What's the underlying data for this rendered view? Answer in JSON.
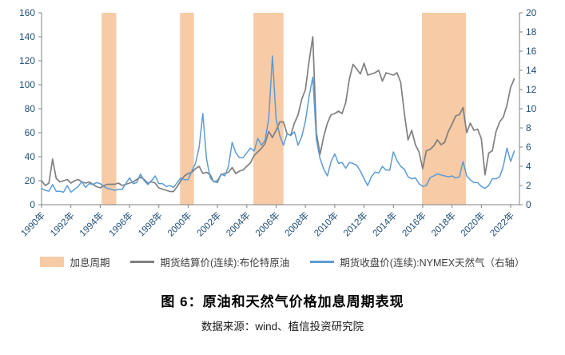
{
  "figure": {
    "title": "图 6：原油和天然气价格加息周期表现",
    "source": "数据来源：wind、植信投资研究院"
  },
  "legend": [
    {
      "label": "加息周期",
      "type": "band",
      "color": "#F6CBA6"
    },
    {
      "label": "期货结算价(连续):布伦特原油",
      "type": "line",
      "color": "#7F7F7F"
    },
    {
      "label": "期货收盘价(连续):NYMEX天然气（右轴）",
      "type": "line",
      "color": "#5B9BD5"
    }
  ],
  "chart_data": {
    "type": "line",
    "title": "图 6：原油和天然气价格加息周期表现",
    "xlabel": "",
    "ylabel_left": "",
    "ylabel_right": "",
    "x_unit": "year",
    "x_start": 1990,
    "x_step": 0.25,
    "x_range": [
      1990,
      2022.6
    ],
    "left_axis": {
      "min": 0,
      "max": 160,
      "step": 20,
      "ticks": [
        0,
        20,
        40,
        60,
        80,
        100,
        120,
        140,
        160
      ]
    },
    "right_axis": {
      "min": 0,
      "max": 20,
      "step": 2,
      "ticks": [
        0,
        2,
        4,
        6,
        8,
        10,
        12,
        14,
        16,
        18,
        20
      ]
    },
    "x_tick_years": [
      1990,
      1992,
      1994,
      1996,
      1998,
      2000,
      2002,
      2004,
      2006,
      2008,
      2010,
      2012,
      2014,
      2016,
      2018,
      2020,
      2022
    ],
    "x_tick_labels": [
      "1990年",
      "1992年",
      "1994年",
      "1996年",
      "1998年",
      "2000年",
      "2002年",
      "2004年",
      "2006年",
      "2008年",
      "2010年",
      "2012年",
      "2014年",
      "2016年",
      "2018年",
      "2020年",
      "2022年"
    ],
    "band_color": "#F6CBA6",
    "axis_label_color": "#1F4E79",
    "axis_line_color": "#808080",
    "rate_hike_bands": [
      [
        1994.1,
        1995.1
      ],
      [
        1999.45,
        2000.4
      ],
      [
        2004.45,
        2006.5
      ],
      [
        2015.95,
        2018.95
      ]
    ],
    "series": [
      {
        "name": "期货结算价(连续):布伦特原油",
        "axis": "left",
        "color": "#7F7F7F",
        "width": 1.7,
        "values": [
          20,
          16,
          18,
          38,
          22,
          19,
          20,
          21,
          18,
          20,
          21,
          19,
          18,
          19,
          17,
          15,
          14,
          16,
          17,
          17,
          17,
          18,
          16,
          17,
          18,
          19,
          21,
          23,
          21,
          18,
          19,
          18,
          14,
          13,
          12,
          11,
          11,
          15,
          20,
          24,
          26,
          27,
          30,
          32,
          26,
          27,
          25,
          19,
          20,
          25,
          26,
          27,
          31,
          26,
          28,
          29,
          32,
          35,
          41,
          44,
          47,
          51,
          61,
          56,
          62,
          69,
          69,
          59,
          58,
          68,
          75,
          88,
          96,
          120,
          140,
          60,
          42,
          57,
          68,
          75,
          76,
          78,
          76,
          85,
          105,
          117,
          113,
          109,
          118,
          108,
          109,
          110,
          112,
          103,
          110,
          109,
          108,
          110,
          102,
          76,
          54,
          62,
          50,
          44,
          30,
          45,
          46,
          49,
          54,
          50,
          52,
          61,
          67,
          74,
          75,
          81,
          60,
          68,
          62,
          63,
          55,
          25,
          43,
          45,
          61,
          69,
          73,
          83,
          98,
          105
        ]
      },
      {
        "name": "期货收盘价(连续):NYMEX天然气（右轴）",
        "axis": "right",
        "color": "#5B9BD5",
        "width": 1.5,
        "values": [
          1.7,
          1.5,
          1.4,
          2.1,
          1.4,
          1.4,
          1.3,
          2.0,
          1.3,
          1.6,
          1.9,
          2.4,
          1.8,
          2.2,
          2.1,
          2.3,
          2.2,
          1.9,
          1.7,
          1.6,
          1.5,
          1.6,
          1.6,
          2.2,
          2.8,
          2.2,
          2.3,
          3.2,
          2.5,
          2.1,
          2.5,
          3.0,
          2.2,
          2.2,
          1.9,
          2.0,
          1.8,
          2.3,
          2.8,
          2.6,
          2.6,
          3.5,
          4.3,
          6.0,
          9.5,
          4.8,
          2.8,
          2.4,
          2.3,
          3.2,
          3.0,
          4.0,
          6.5,
          5.4,
          4.9,
          4.9,
          5.4,
          5.9,
          5.6,
          6.9,
          6.2,
          6.7,
          9.0,
          15.5,
          8.9,
          7.2,
          6.2,
          7.4,
          7.2,
          7.6,
          6.2,
          7.1,
          8.7,
          11.3,
          13.3,
          6.8,
          4.8,
          3.7,
          3.0,
          4.5,
          5.3,
          4.3,
          4.4,
          3.8,
          4.4,
          4.3,
          4.1,
          3.5,
          2.7,
          2.0,
          2.9,
          3.4,
          3.3,
          4.0,
          3.6,
          3.6,
          5.5,
          4.6,
          4.0,
          3.7,
          2.9,
          2.7,
          2.8,
          2.2,
          1.9,
          2.0,
          2.8,
          3.0,
          3.2,
          3.1,
          3.0,
          2.9,
          3.0,
          2.8,
          2.9,
          4.5,
          3.0,
          2.6,
          2.3,
          2.3,
          1.9,
          1.7,
          2.0,
          2.7,
          2.7,
          2.9,
          4.0,
          5.9,
          4.5,
          5.6
        ]
      }
    ]
  }
}
